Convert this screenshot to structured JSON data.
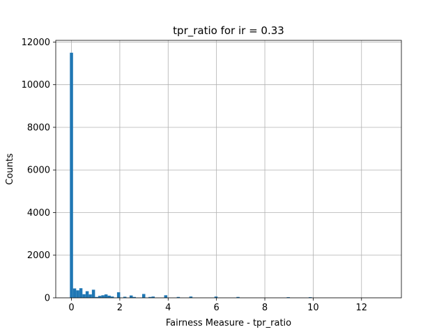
{
  "chart_data": {
    "type": "bar",
    "subtype": "histogram",
    "title": "tpr_ratio for ir = 0.33",
    "xlabel": "Fairness Measure - tpr_ratio",
    "ylabel": "Counts",
    "xlim": [
      -0.65,
      13.65
    ],
    "ylim": [
      0,
      12080
    ],
    "xticks": [
      0,
      2,
      4,
      6,
      8,
      10,
      12
    ],
    "yticks": [
      0,
      2000,
      4000,
      6000,
      8000,
      10000,
      12000
    ],
    "grid": true,
    "bar_color": "#1f77b4",
    "bin_width": 0.13,
    "bins": [
      {
        "x": 0.0,
        "count": 11500
      },
      {
        "x": 0.13,
        "count": 440
      },
      {
        "x": 0.26,
        "count": 350
      },
      {
        "x": 0.39,
        "count": 450
      },
      {
        "x": 0.52,
        "count": 170
      },
      {
        "x": 0.65,
        "count": 310
      },
      {
        "x": 0.78,
        "count": 160
      },
      {
        "x": 0.91,
        "count": 380
      },
      {
        "x": 1.04,
        "count": 40
      },
      {
        "x": 1.17,
        "count": 90
      },
      {
        "x": 1.3,
        "count": 120
      },
      {
        "x": 1.43,
        "count": 160
      },
      {
        "x": 1.56,
        "count": 100
      },
      {
        "x": 1.69,
        "count": 60
      },
      {
        "x": 1.95,
        "count": 260
      },
      {
        "x": 2.21,
        "count": 50
      },
      {
        "x": 2.47,
        "count": 110
      },
      {
        "x": 2.6,
        "count": 40
      },
      {
        "x": 2.99,
        "count": 180
      },
      {
        "x": 3.25,
        "count": 40
      },
      {
        "x": 3.38,
        "count": 60
      },
      {
        "x": 3.9,
        "count": 120
      },
      {
        "x": 4.42,
        "count": 40
      },
      {
        "x": 4.94,
        "count": 60
      },
      {
        "x": 5.98,
        "count": 60
      },
      {
        "x": 6.89,
        "count": 40
      },
      {
        "x": 8.97,
        "count": 30
      },
      {
        "x": 9.88,
        "count": 30
      }
    ]
  }
}
